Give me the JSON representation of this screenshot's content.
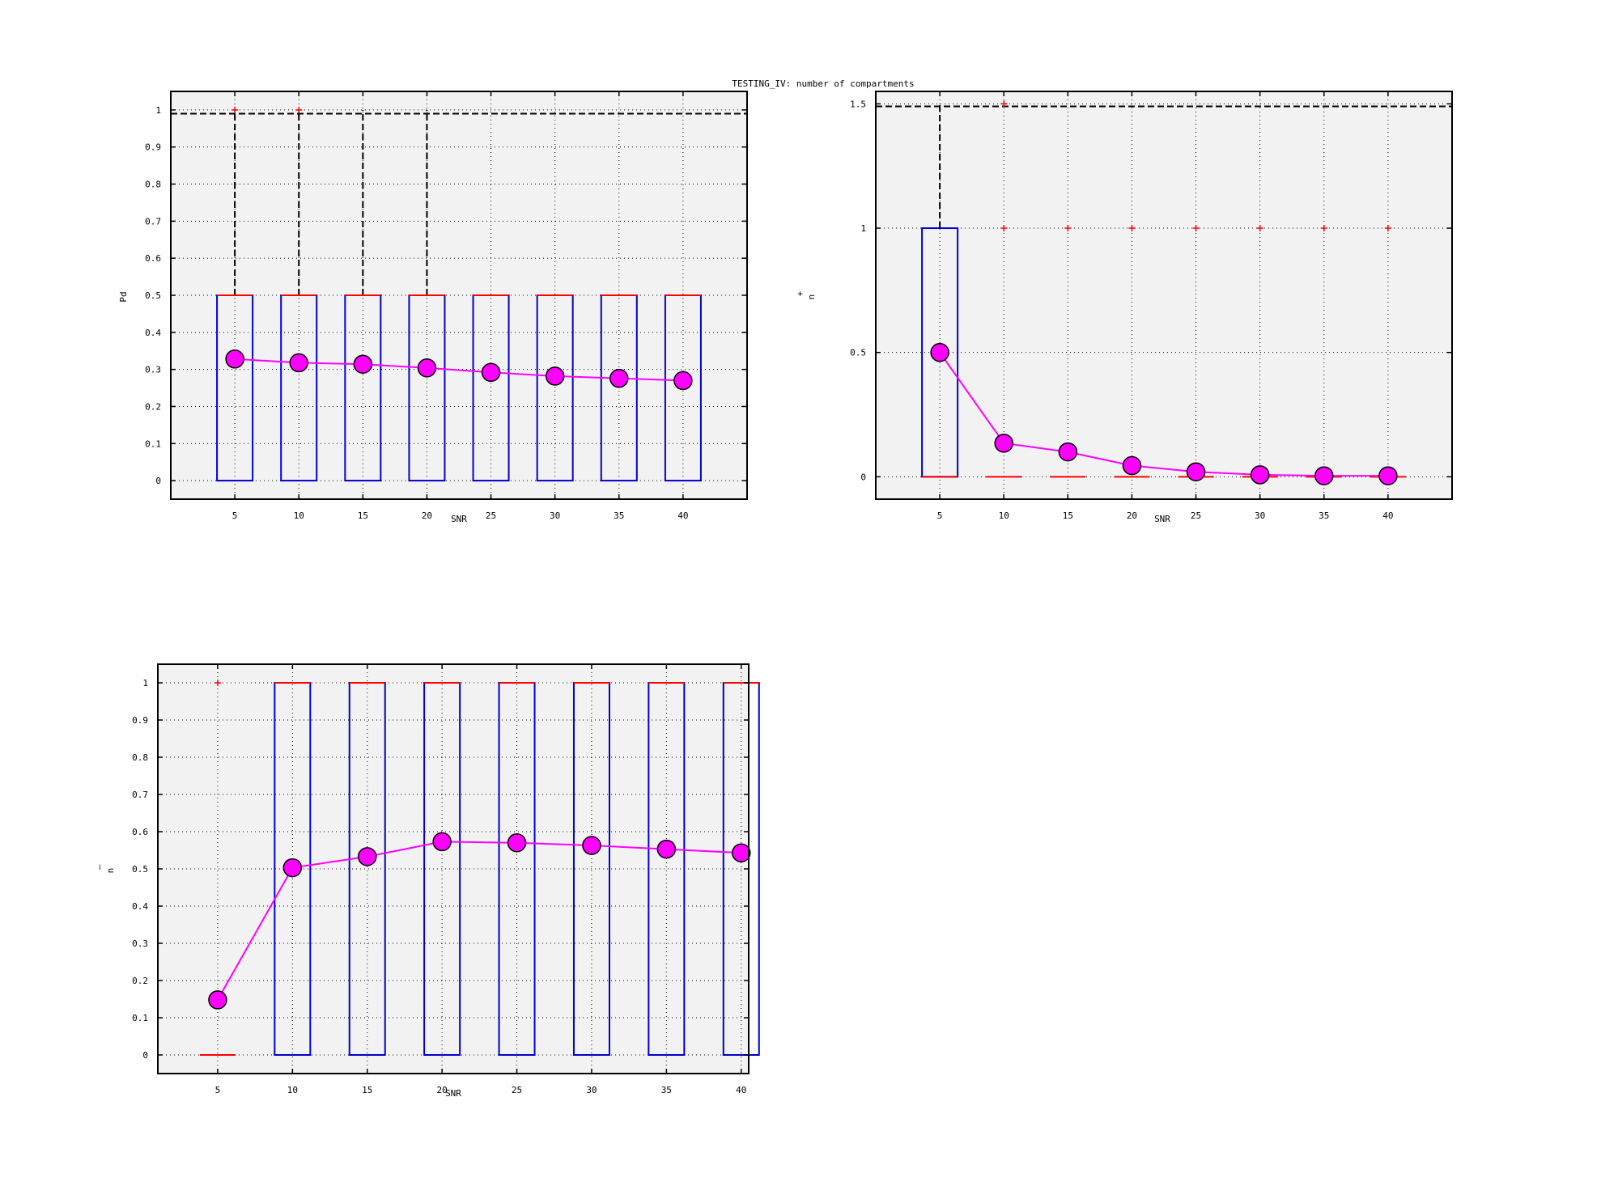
{
  "figure_title": "TESTING_IV: number of compartments",
  "chart_data": [
    {
      "type": "box",
      "xlabel": "SNR",
      "ylabel": "Pd",
      "ylabel_sup": "",
      "x": [
        5,
        10,
        15,
        20,
        25,
        30,
        35,
        40
      ],
      "xlim": [
        0,
        45
      ],
      "ylim": [
        -0.05,
        1.05
      ],
      "yticks": [
        0,
        0.1,
        0.2,
        0.3,
        0.4,
        0.5,
        0.6,
        0.7,
        0.8,
        0.9,
        1
      ],
      "ytick_labels": [
        "0",
        "0.1",
        "0.2",
        "0.3",
        "0.4",
        "0.5",
        "0.6",
        "0.7",
        "0.8",
        "0.9",
        "1"
      ],
      "grid": true,
      "boxes": [
        {
          "q1": 0,
          "median": 0.5,
          "q3": 0.5,
          "lower_whisker": 0,
          "upper_whisker": 1
        },
        {
          "q1": 0,
          "median": 0.5,
          "q3": 0.5,
          "lower_whisker": 0,
          "upper_whisker": 1
        },
        {
          "q1": 0,
          "median": 0.5,
          "q3": 0.5,
          "lower_whisker": 0,
          "upper_whisker": 1
        },
        {
          "q1": 0,
          "median": 0.5,
          "q3": 0.5,
          "lower_whisker": 0,
          "upper_whisker": 1
        },
        {
          "q1": 0,
          "median": 0.5,
          "q3": 0.5,
          "lower_whisker": 0,
          "upper_whisker": 0.5
        },
        {
          "q1": 0,
          "median": 0.5,
          "q3": 0.5,
          "lower_whisker": 0,
          "upper_whisker": 0.5
        },
        {
          "q1": 0,
          "median": 0.5,
          "q3": 0.5,
          "lower_whisker": 0,
          "upper_whisker": 0.5
        },
        {
          "q1": 0,
          "median": 0.5,
          "q3": 0.5,
          "lower_whisker": 0,
          "upper_whisker": 0.5
        }
      ],
      "whisker_cap_line": 0.99,
      "outliers": [
        [
          5,
          1
        ],
        [
          10,
          1
        ]
      ],
      "mean": [
        0.328,
        0.318,
        0.314,
        0.304,
        0.292,
        0.282,
        0.276,
        0.27
      ]
    },
    {
      "type": "box",
      "xlabel": "SNR",
      "ylabel": "n",
      "ylabel_sup": "+",
      "x": [
        5,
        10,
        15,
        20,
        25,
        30,
        35,
        40
      ],
      "xlim": [
        0,
        45
      ],
      "ylim": [
        -0.09,
        1.55
      ],
      "yticks": [
        0,
        0.5,
        1,
        1.5
      ],
      "ytick_labels": [
        "0",
        "0.5",
        "1",
        "1.5"
      ],
      "grid": true,
      "boxes": [
        {
          "q1": 0,
          "median": 0,
          "q3": 1,
          "lower_whisker": 0,
          "upper_whisker": 1.5
        },
        {
          "q1": 0,
          "median": 0,
          "q3": 0,
          "lower_whisker": 0,
          "upper_whisker": 0
        },
        {
          "q1": 0,
          "median": 0,
          "q3": 0,
          "lower_whisker": 0,
          "upper_whisker": 0
        },
        {
          "q1": 0,
          "median": 0,
          "q3": 0,
          "lower_whisker": 0,
          "upper_whisker": 0
        },
        {
          "q1": 0,
          "median": 0,
          "q3": 0,
          "lower_whisker": 0,
          "upper_whisker": 0
        },
        {
          "q1": 0,
          "median": 0,
          "q3": 0,
          "lower_whisker": 0,
          "upper_whisker": 0
        },
        {
          "q1": 0,
          "median": 0,
          "q3": 0,
          "lower_whisker": 0,
          "upper_whisker": 0
        },
        {
          "q1": 0,
          "median": 0,
          "q3": 0,
          "lower_whisker": 0,
          "upper_whisker": 0
        }
      ],
      "whisker_cap_line": 1.49,
      "outliers": [
        [
          10,
          1.5
        ],
        [
          10,
          1
        ],
        [
          15,
          1
        ],
        [
          20,
          1
        ],
        [
          25,
          1
        ],
        [
          30,
          1
        ],
        [
          35,
          1
        ],
        [
          40,
          1
        ]
      ],
      "mean": [
        0.5,
        0.135,
        0.1,
        0.045,
        0.02,
        0.008,
        0.004,
        0.004
      ]
    },
    {
      "type": "box",
      "xlabel": "SNR",
      "ylabel": "n",
      "ylabel_sup": "–",
      "x": [
        5,
        10,
        15,
        20,
        25,
        30,
        35,
        40
      ],
      "xlim": [
        1,
        40.5
      ],
      "ylim": [
        -0.05,
        1.05
      ],
      "yticks": [
        0,
        0.1,
        0.2,
        0.3,
        0.4,
        0.5,
        0.6,
        0.7,
        0.8,
        0.9,
        1
      ],
      "ytick_labels": [
        "0",
        "0.1",
        "0.2",
        "0.3",
        "0.4",
        "0.5",
        "0.6",
        "0.7",
        "0.8",
        "0.9",
        "1"
      ],
      "grid": true,
      "boxes": [
        {
          "q1": 0,
          "median": 0,
          "q3": 0,
          "lower_whisker": 0,
          "upper_whisker": 0
        },
        {
          "q1": 0,
          "median": 1,
          "q3": 1,
          "lower_whisker": 0,
          "upper_whisker": 1
        },
        {
          "q1": 0,
          "median": 1,
          "q3": 1,
          "lower_whisker": 0,
          "upper_whisker": 1
        },
        {
          "q1": 0,
          "median": 1,
          "q3": 1,
          "lower_whisker": 0,
          "upper_whisker": 1
        },
        {
          "q1": 0,
          "median": 1,
          "q3": 1,
          "lower_whisker": 0,
          "upper_whisker": 1
        },
        {
          "q1": 0,
          "median": 1,
          "q3": 1,
          "lower_whisker": 0,
          "upper_whisker": 1
        },
        {
          "q1": 0,
          "median": 1,
          "q3": 1,
          "lower_whisker": 0,
          "upper_whisker": 1
        },
        {
          "q1": 0,
          "median": 1,
          "q3": 1,
          "lower_whisker": 0,
          "upper_whisker": 1
        }
      ],
      "whisker_cap_line": null,
      "outliers": [
        [
          5,
          1
        ]
      ],
      "mean": [
        0.148,
        0.503,
        0.533,
        0.573,
        0.57,
        0.563,
        0.553,
        0.543
      ]
    }
  ],
  "colors": {
    "box": "#0000cc",
    "median": "#ff0000",
    "outlier": "#ff0000",
    "whisker": "#000000",
    "mean_line": "#ff00ff",
    "mean_marker": "#ff00ff",
    "plot_bg": "#f2f2f2",
    "grid": "#000000"
  }
}
